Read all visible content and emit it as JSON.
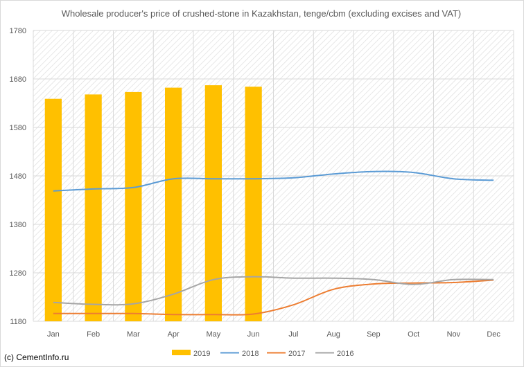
{
  "source_label": "(c) CementInfo.ru",
  "chart_data": {
    "type": "bar",
    "title": "Wholesale producer's price of crushed-stone in Kazakhstan, tenge/cbm (excluding excises and VAT)",
    "xlabel": "",
    "ylabel": "",
    "categories": [
      "Jan",
      "Feb",
      "Mar",
      "Apr",
      "May",
      "Jun",
      "Jul",
      "Aug",
      "Sep",
      "Oct",
      "Nov",
      "Dec"
    ],
    "ylim": [
      1180,
      1780
    ],
    "yticks": [
      "1180",
      "1280",
      "1380",
      "1480",
      "1580",
      "1680",
      "1780"
    ],
    "grid": true,
    "legend_position": "bottom",
    "series": [
      {
        "name": "2019",
        "kind": "bar",
        "color": "#ffc000",
        "values": [
          1639,
          1648,
          1653,
          1662,
          1667,
          1664,
          null,
          null,
          null,
          null,
          null,
          null
        ]
      },
      {
        "name": "2018",
        "kind": "line",
        "color": "#5b9bd5",
        "values": [
          1449,
          1453,
          1456,
          1474,
          1474,
          1474,
          1476,
          1484,
          1489,
          1487,
          1474,
          1471
        ]
      },
      {
        "name": "2017",
        "kind": "line",
        "color": "#ed7d31",
        "values": [
          1196,
          1196,
          1196,
          1194,
          1194,
          1195,
          1214,
          1246,
          1257,
          1259,
          1260,
          1265
        ]
      },
      {
        "name": "2016",
        "kind": "line",
        "color": "#a5a5a5",
        "values": [
          1219,
          1215,
          1216,
          1236,
          1266,
          1272,
          1269,
          1269,
          1266,
          1256,
          1266,
          1266
        ]
      }
    ]
  }
}
